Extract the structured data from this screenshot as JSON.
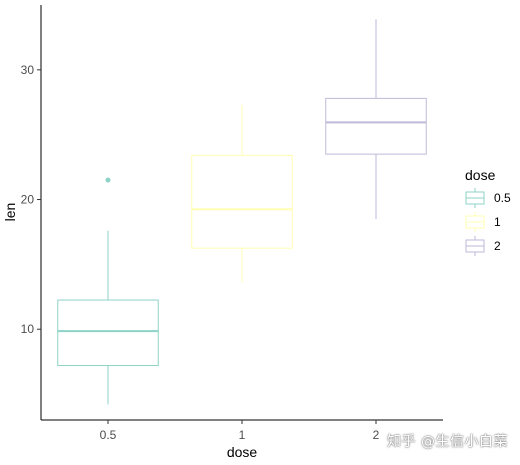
{
  "chart_data": {
    "type": "box",
    "xlabel": "dose",
    "ylabel": "len",
    "ylim": [
      3,
      35
    ],
    "yticks": [
      10,
      20,
      30
    ],
    "grid": false,
    "legend": {
      "title": "dose",
      "placement": "right"
    },
    "categories": [
      "0.5",
      "1",
      "2"
    ],
    "boxes": [
      {
        "category": "0.5",
        "color": "#8dd3c7",
        "min": 4.2,
        "q1": 7.2,
        "median": 9.85,
        "q3": 12.25,
        "max": 17.6,
        "outliers": [
          21.5
        ]
      },
      {
        "category": "1",
        "color": "#ffffb3",
        "min": 13.6,
        "q1": 16.25,
        "median": 19.25,
        "q3": 23.4,
        "max": 27.3,
        "outliers": []
      },
      {
        "category": "2",
        "color": "#bebada",
        "min": 18.5,
        "q1": 23.5,
        "median": 25.95,
        "q3": 27.8,
        "max": 33.9,
        "outliers": []
      }
    ]
  },
  "watermark": "知乎 @生信小白菜"
}
